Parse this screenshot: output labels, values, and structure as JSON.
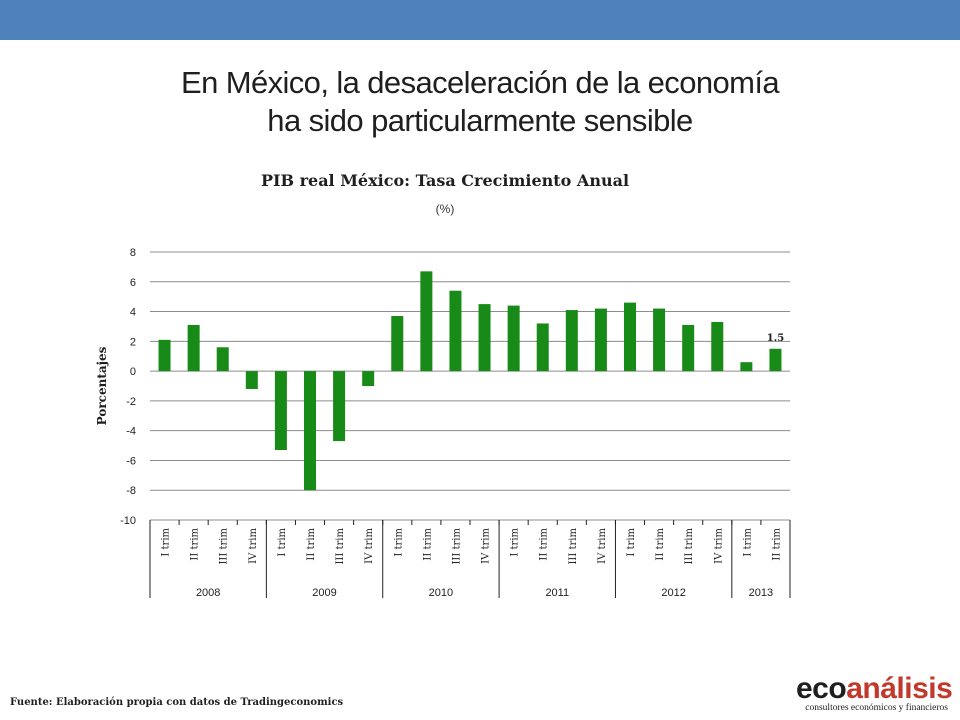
{
  "slide": {
    "title_line1": "En México, la desaceleración de la economía",
    "title_line2": "ha sido particularmente sensible",
    "header_color": "#4f81bd"
  },
  "footer": {
    "source": "Fuente: Elaboración propia con datos de Tradingeconomics"
  },
  "logo": {
    "part1": "eco",
    "part2": "análisis",
    "tagline": "consultores económicos y financieros"
  },
  "chart_data": {
    "type": "bar",
    "title": "PIB real México: Tasa Crecimiento Anual",
    "subtitle": "(%)",
    "ylabel": "Porcentajes",
    "ylim": [
      -10,
      8
    ],
    "yticks": [
      8,
      6,
      4,
      2,
      0,
      -2,
      -4,
      -6,
      -8,
      -10
    ],
    "grid": true,
    "bar_color": "#188a18",
    "categories": [
      "I trim",
      "II trim",
      "III trim",
      "IV trim",
      "I trim",
      "II trim",
      "III trim",
      "IV trim",
      "I trim",
      "II trim",
      "III trim",
      "IV trim",
      "I trim",
      "II trim",
      "III trim",
      "IV trim",
      "I trim",
      "II trim",
      "III trim",
      "IV trim",
      "I trim",
      "II trim"
    ],
    "groups": [
      {
        "label": "2008",
        "count": 4
      },
      {
        "label": "2009",
        "count": 4
      },
      {
        "label": "2010",
        "count": 4
      },
      {
        "label": "2011",
        "count": 4
      },
      {
        "label": "2012",
        "count": 4
      },
      {
        "label": "2013",
        "count": 2
      }
    ],
    "values": [
      2.1,
      3.1,
      1.6,
      -1.2,
      -5.3,
      -8.0,
      -4.7,
      -1.0,
      3.7,
      6.7,
      5.4,
      4.5,
      4.4,
      3.2,
      4.1,
      4.2,
      4.6,
      4.2,
      3.1,
      3.3,
      0.6,
      1.5
    ],
    "data_labels": [
      {
        "index": 21,
        "text": "1.5"
      }
    ]
  }
}
